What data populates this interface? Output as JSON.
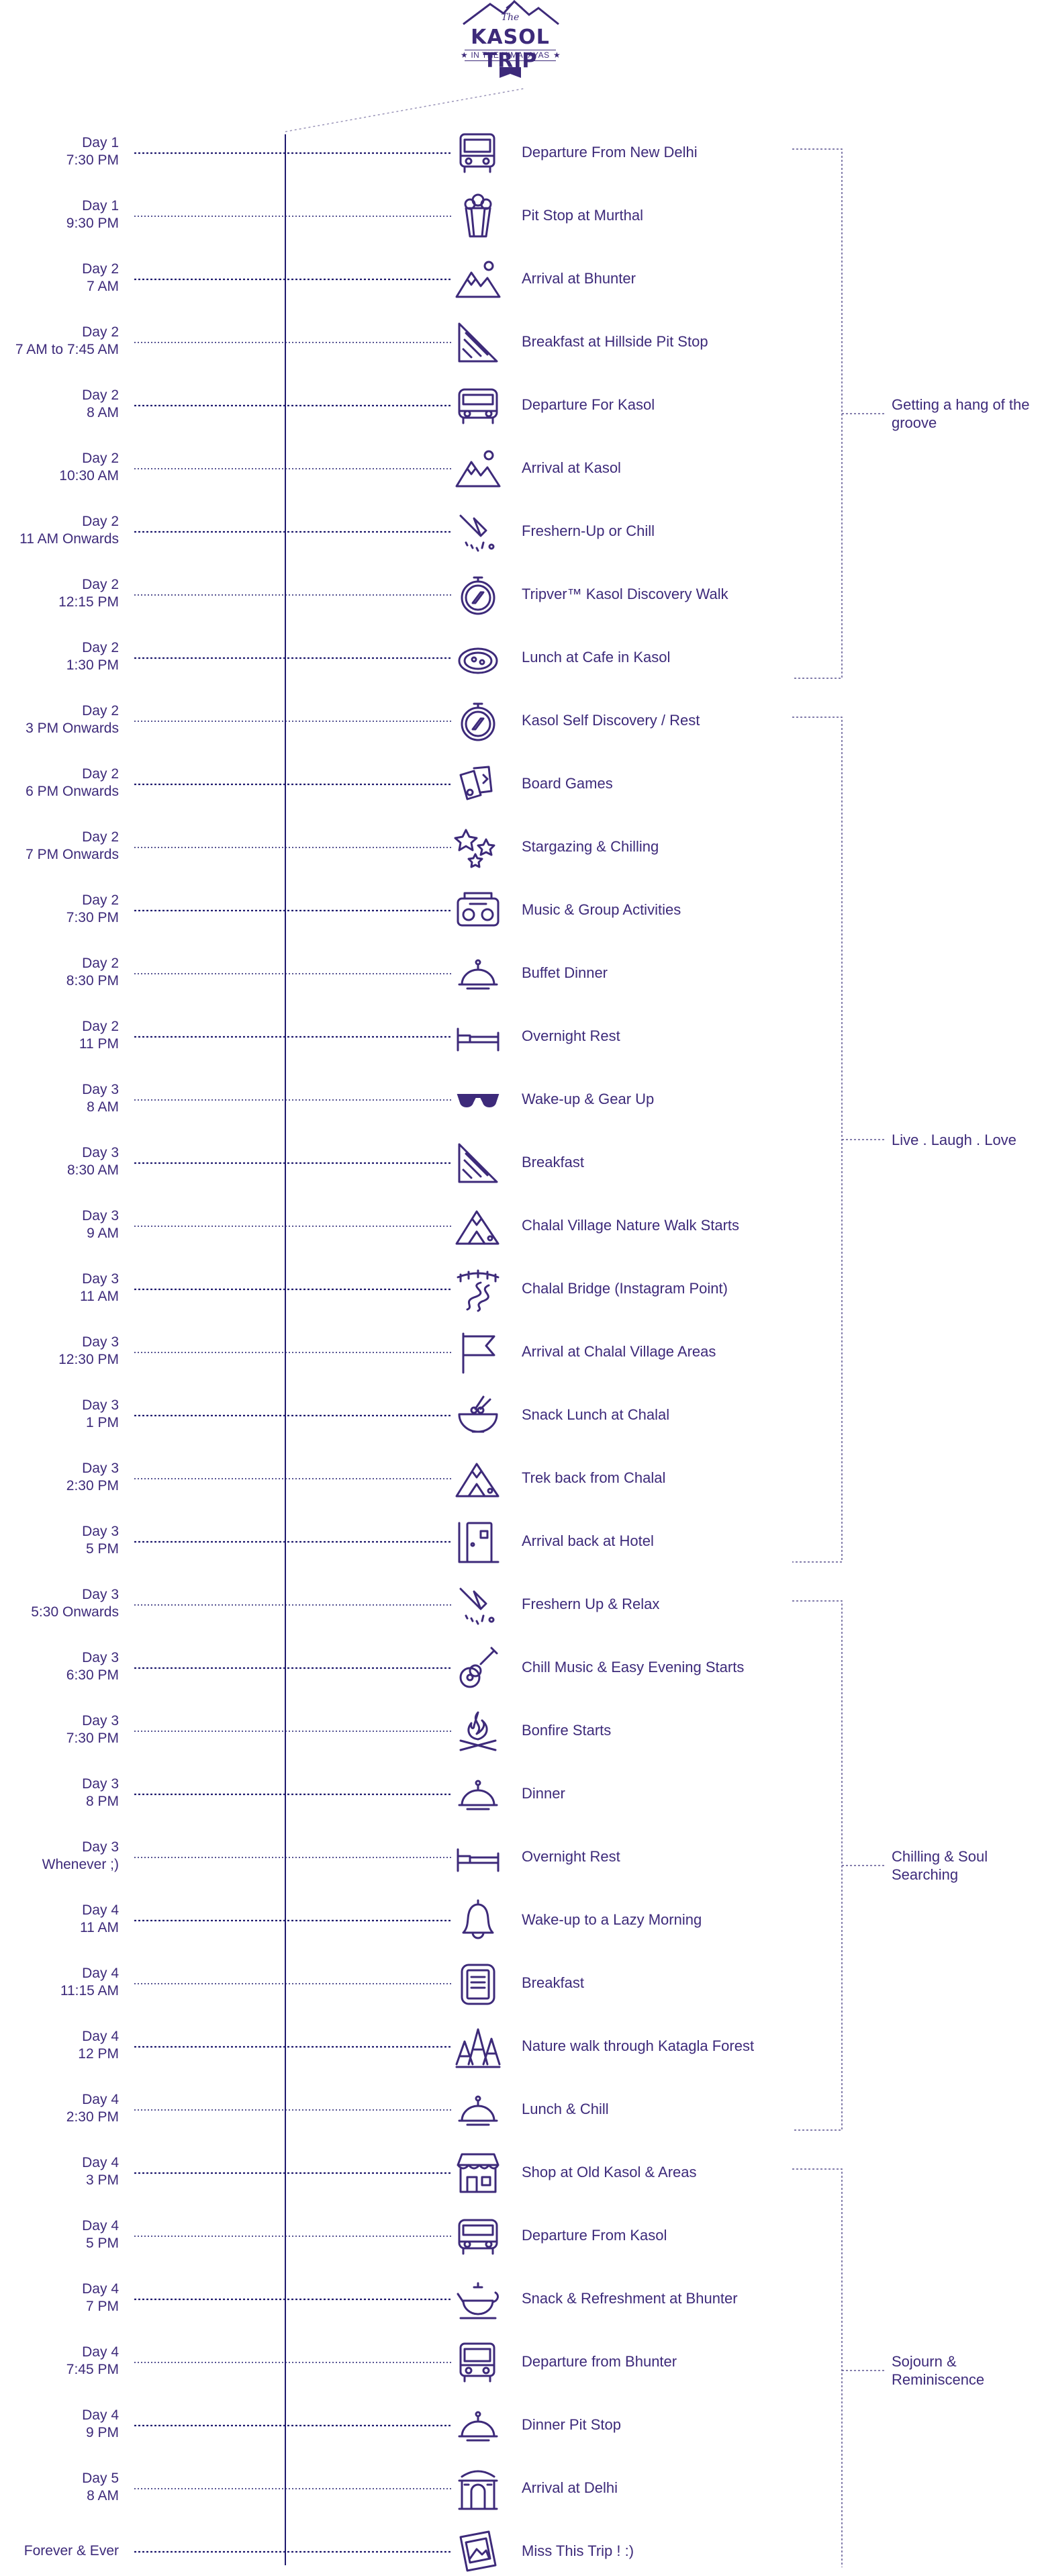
{
  "logo": {
    "the": "The",
    "title": "KASOL TRIP",
    "subtitle": "IN THE HIMALAYAS"
  },
  "colors": {
    "ink": "#3d2a7a",
    "line": "#1f1a6e"
  },
  "events": [
    {
      "day": "Day 1",
      "time": "7:30 PM",
      "activity": "Departure From New Delhi",
      "icon": "bus-icon"
    },
    {
      "day": "Day 1",
      "time": "9:30 PM",
      "activity": "Pit Stop at Murthal",
      "icon": "popcorn-icon"
    },
    {
      "day": "Day 2",
      "time": "7 AM",
      "activity": "Arrival at Bhunter",
      "icon": "mountains-icon"
    },
    {
      "day": "Day 2",
      "time": "7 AM to 7:45 AM",
      "activity": "Breakfast at Hillside Pit Stop",
      "icon": "sandwich-icon"
    },
    {
      "day": "Day 2",
      "time": "8 AM",
      "activity": "Departure For Kasol",
      "icon": "van-icon"
    },
    {
      "day": "Day 2",
      "time": "10:30 AM",
      "activity": "Arrival at Kasol",
      "icon": "mountains-icon"
    },
    {
      "day": "Day 2",
      "time": "11 AM Onwards",
      "activity": "Freshern-Up or Chill",
      "icon": "shower-icon"
    },
    {
      "day": "Day 2",
      "time": "12:15 PM",
      "activity": "Tripver™ Kasol Discovery Walk",
      "icon": "compass-icon"
    },
    {
      "day": "Day 2",
      "time": "1:30 PM",
      "activity": "Lunch at Cafe in Kasol",
      "icon": "pizza-icon"
    },
    {
      "day": "Day 2",
      "time": "3 PM Onwards",
      "activity": "Kasol Self Discovery / Rest",
      "icon": "compass-icon"
    },
    {
      "day": "Day 2",
      "time": "6 PM Onwards",
      "activity": "Board Games",
      "icon": "cards-icon"
    },
    {
      "day": "Day 2",
      "time": "7 PM Onwards",
      "activity": "Stargazing & Chilling",
      "icon": "stars-icon"
    },
    {
      "day": "Day 2",
      "time": "7:30 PM",
      "activity": "Music & Group Activities",
      "icon": "boombox-icon"
    },
    {
      "day": "Day 2",
      "time": "8:30 PM",
      "activity": "Buffet Dinner",
      "icon": "cloche-icon"
    },
    {
      "day": "Day 2",
      "time": "11 PM",
      "activity": "Overnight Rest",
      "icon": "bed-icon"
    },
    {
      "day": "Day 3",
      "time": "8 AM",
      "activity": "Wake-up & Gear Up",
      "icon": "sunglasses-icon"
    },
    {
      "day": "Day 3",
      "time": "8:30 AM",
      "activity": "Breakfast",
      "icon": "sandwich-icon"
    },
    {
      "day": "Day 3",
      "time": "9 AM",
      "activity": "Chalal Village Nature Walk Starts",
      "icon": "camp-icon"
    },
    {
      "day": "Day 3",
      "time": "11 AM",
      "activity": "Chalal Bridge (Instagram Point)",
      "icon": "river-icon"
    },
    {
      "day": "Day 3",
      "time": "12:30 PM",
      "activity": "Arrival at Chalal Village Areas",
      "icon": "flag-icon"
    },
    {
      "day": "Day 3",
      "time": "1 PM",
      "activity": "Snack Lunch at Chalal",
      "icon": "bowl-icon"
    },
    {
      "day": "Day 3",
      "time": "2:30 PM",
      "activity": "Trek back from Chalal",
      "icon": "camp-icon"
    },
    {
      "day": "Day 3",
      "time": "5 PM",
      "activity": "Arrival back at Hotel",
      "icon": "door-icon"
    },
    {
      "day": "Day 3",
      "time": "5:30 Onwards",
      "activity": "Freshern Up & Relax",
      "icon": "shower-icon"
    },
    {
      "day": "Day 3",
      "time": "6:30 PM",
      "activity": "Chill Music & Easy Evening Starts",
      "icon": "guitar-icon"
    },
    {
      "day": "Day 3",
      "time": "7:30 PM",
      "activity": "Bonfire Starts",
      "icon": "bonfire-icon"
    },
    {
      "day": "Day 3",
      "time": "8 PM",
      "activity": "Dinner",
      "icon": "cloche-icon"
    },
    {
      "day": "Day 3",
      "time": "Whenever ;)",
      "activity": "Overnight Rest",
      "icon": "bed-icon"
    },
    {
      "day": "Day 4",
      "time": "11 AM",
      "activity": "Wake-up to a Lazy Morning",
      "icon": "bell-icon"
    },
    {
      "day": "Day 4",
      "time": "11:15 AM",
      "activity": "Breakfast",
      "icon": "menu-icon"
    },
    {
      "day": "Day 4",
      "time": "12 PM",
      "activity": "Nature walk through Katagla Forest",
      "icon": "forest-icon"
    },
    {
      "day": "Day 4",
      "time": "2:30 PM",
      "activity": "Lunch & Chill",
      "icon": "cloche-icon"
    },
    {
      "day": "Day 4",
      "time": "3 PM",
      "activity": "Shop at Old Kasol & Areas",
      "icon": "shop-icon"
    },
    {
      "day": "Day 4",
      "time": "5 PM",
      "activity": "Departure From Kasol",
      "icon": "van-icon"
    },
    {
      "day": "Day 4",
      "time": "7 PM",
      "activity": "Snack & Refreshment at Bhunter",
      "icon": "teapot-icon"
    },
    {
      "day": "Day 4",
      "time": "7:45 PM",
      "activity": "Departure from Bhunter",
      "icon": "bus-icon"
    },
    {
      "day": "Day 4",
      "time": "9 PM",
      "activity": "Dinner Pit Stop",
      "icon": "cloche-icon"
    },
    {
      "day": "Day 5",
      "time": "8 AM",
      "activity": "Arrival at Delhi",
      "icon": "gate-icon"
    },
    {
      "day": "",
      "time": "Forever & Ever",
      "activity": "Miss This Trip ! :)",
      "icon": "photos-icon"
    }
  ],
  "groups": [
    {
      "label": "Getting a hang of the groove",
      "from": 0,
      "to": 8
    },
    {
      "label": "Live . Laugh . Love",
      "from": 9,
      "to": 22
    },
    {
      "label": "Chilling & Soul Searching",
      "from": 23,
      "to": 31
    },
    {
      "label": "Sojourn & Reminiscence",
      "from": 32,
      "to": 38
    }
  ]
}
